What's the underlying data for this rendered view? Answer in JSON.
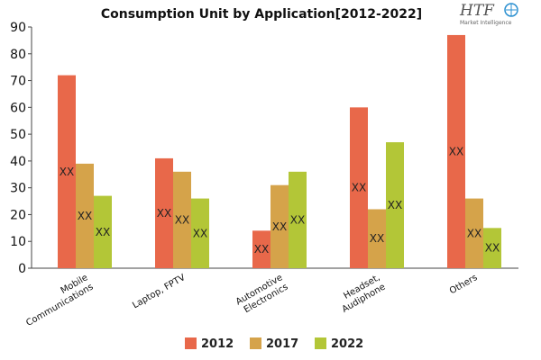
{
  "chart_data": {
    "type": "bar",
    "title": "Consumption Unit by  Application[2012-2022]",
    "categories": [
      [
        "Mobile",
        "Communications"
      ],
      [
        "Laptop, FPTV"
      ],
      [
        "Automotive",
        "Electronics"
      ],
      [
        "Headset,",
        "Audiphone"
      ],
      [
        "Others"
      ]
    ],
    "series": [
      {
        "name": "2012",
        "color": "#e8684a",
        "values": [
          72,
          41,
          14,
          60,
          87
        ]
      },
      {
        "name": "2017",
        "color": "#d5a34a",
        "values": [
          39,
          36,
          31,
          22,
          26
        ]
      },
      {
        "name": "2022",
        "color": "#b3c637",
        "values": [
          27,
          26,
          36,
          47,
          15
        ]
      }
    ],
    "data_label_text": "XX",
    "yticks": [
      "0",
      "10",
      "20",
      "30",
      "40",
      "50",
      "60",
      "70",
      "80",
      "90"
    ],
    "ylim": [
      0,
      90
    ],
    "xlabel": "",
    "ylabel": "",
    "grid": false,
    "legend_position": "bottom-center"
  },
  "logo": {
    "text": "HTF",
    "subtext": "Market Intelligence",
    "color": "#2a8fd0"
  }
}
